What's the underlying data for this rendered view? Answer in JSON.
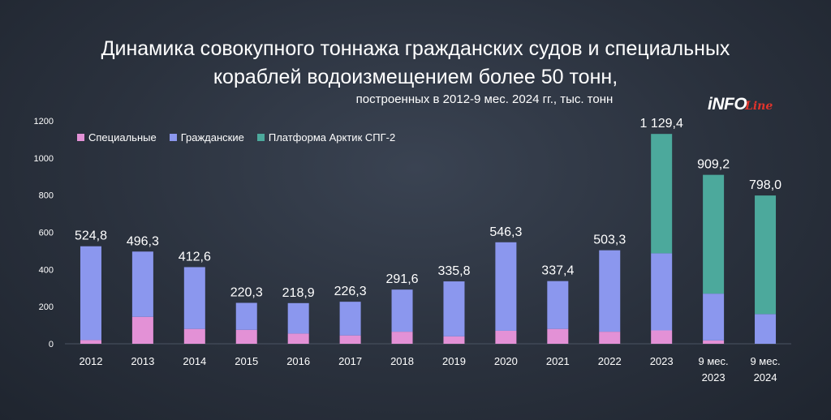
{
  "header": {
    "title_line1": "Динамика совокупного тоннажа гражданских судов и специальных",
    "title_line2": "кораблей водоизмещением более 50 тонн,",
    "subtitle": "построенных в 2012-9 мес. 2024 гг., тыс. тонн"
  },
  "logo": {
    "text_main": "iNFO",
    "text_accent": "Line"
  },
  "colors": {
    "special": "#e391d6",
    "civil": "#8b97ee",
    "arctic": "#4ca99c",
    "grid": "#4a5362",
    "axis_text": "#ffffff"
  },
  "chart_data": {
    "type": "bar",
    "stacked": true,
    "title": "Динамика совокупного тоннажа гражданских судов и специальных кораблей водоизмещением более 50 тонн, построенных в 2012-9 мес. 2024 гг., тыс. тонн",
    "categories": [
      [
        "2012"
      ],
      [
        "2013"
      ],
      [
        "2014"
      ],
      [
        "2015"
      ],
      [
        "2016"
      ],
      [
        "2017"
      ],
      [
        "2018"
      ],
      [
        "2019"
      ],
      [
        "2020"
      ],
      [
        "2021"
      ],
      [
        "2022"
      ],
      [
        "2023"
      ],
      [
        "9 мес.",
        "2023"
      ],
      [
        "9 мес.",
        "2024"
      ]
    ],
    "series": [
      {
        "name": "Специальные",
        "key": "special",
        "values": [
          20,
          145,
          80,
          75,
          55,
          45,
          65,
          40,
          70,
          80,
          65,
          72,
          18,
          0
        ]
      },
      {
        "name": "Гражданские",
        "key": "civil",
        "values": [
          504.8,
          351.3,
          332.6,
          145.3,
          163.9,
          181.3,
          226.6,
          295.8,
          476.3,
          257.4,
          438.3,
          415,
          252,
          160
        ]
      },
      {
        "name": "Платформа Арктик СПГ-2",
        "key": "arctic",
        "values": [
          0,
          0,
          0,
          0,
          0,
          0,
          0,
          0,
          0,
          0,
          0,
          642.4,
          639.2,
          638
        ]
      }
    ],
    "totals": [
      "524,8",
      "496,3",
      "412,6",
      "220,3",
      "218,9",
      "226,3",
      "291,6",
      "335,8",
      "546,3",
      "337,4",
      "503,3",
      "1 129,4",
      "909,2",
      "798,0"
    ],
    "total_values": [
      524.8,
      496.3,
      412.6,
      220.3,
      218.9,
      226.3,
      291.6,
      335.8,
      546.3,
      337.4,
      503.3,
      1129.4,
      909.2,
      798.0
    ],
    "yticks": [
      0,
      200,
      400,
      600,
      800,
      1000,
      1200
    ],
    "ylim": [
      0,
      1200
    ],
    "legend_position": "top-left",
    "grid": false
  }
}
